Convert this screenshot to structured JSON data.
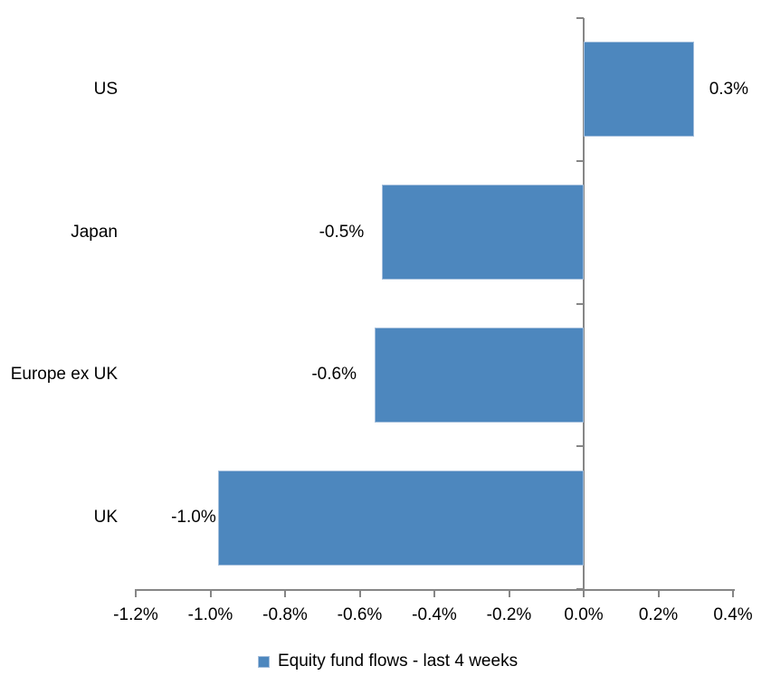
{
  "chart_data": {
    "type": "bar",
    "orientation": "horizontal",
    "title": "",
    "categories": [
      "US",
      "Japan",
      "Europe ex UK",
      "UK"
    ],
    "values": [
      0.3,
      -0.5,
      -0.6,
      -1.0
    ],
    "values_plotted_pct": [
      0.295,
      -0.54,
      -0.56,
      -0.98
    ],
    "data_labels": [
      "0.3%",
      "-0.5%",
      "-0.6%",
      "-1.0%"
    ],
    "series_name": "Equity fund flows - last 4 weeks",
    "x_axis": {
      "min": -1.2,
      "max": 0.4,
      "tick_step": 0.2,
      "tick_labels": [
        "-1.2%",
        "-1.0%",
        "-0.8%",
        "-0.6%",
        "-0.4%",
        "-0.2%",
        "0.0%",
        "0.2%",
        "0.4%"
      ]
    },
    "grid": false,
    "legend_position": "bottom",
    "colors": {
      "bar": "#4D87BE",
      "bar_edge": "#A3BEDC",
      "axis": "#868686",
      "text": "#000000",
      "background": "#FFFFFF"
    }
  }
}
